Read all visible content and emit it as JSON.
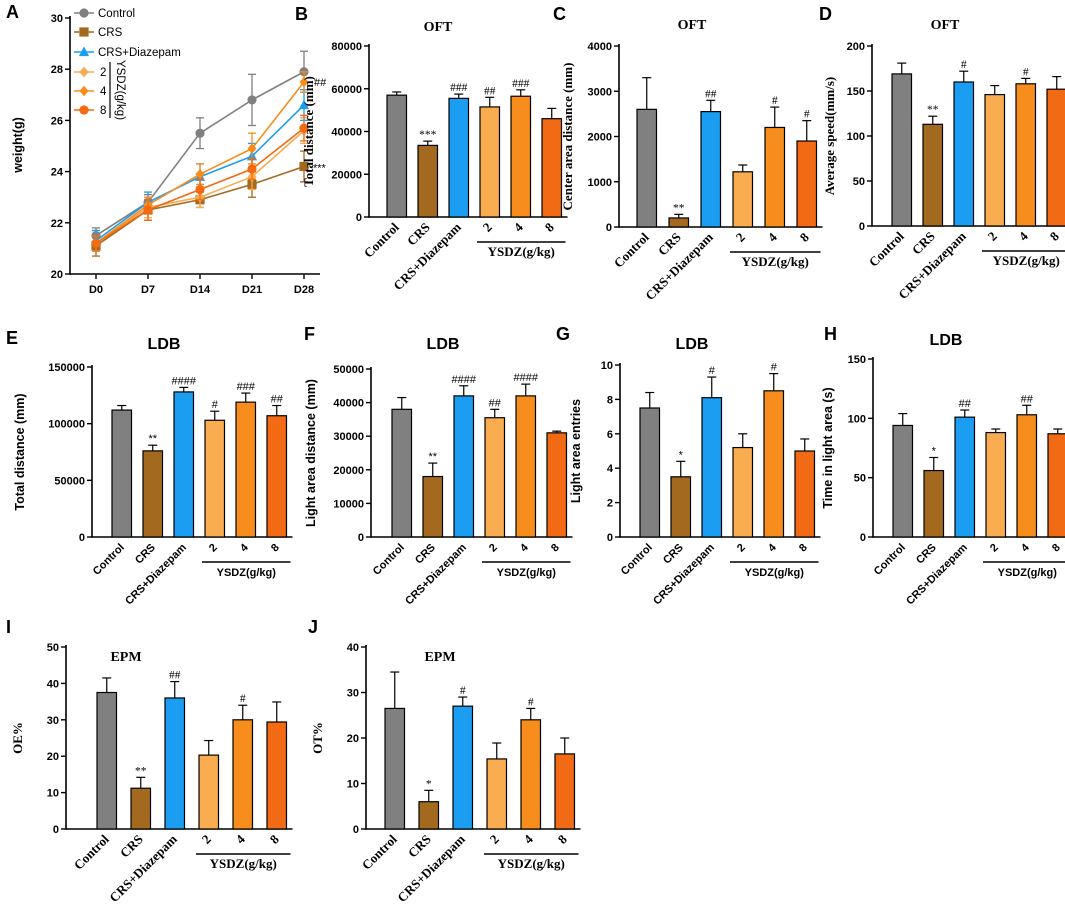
{
  "colors": {
    "control": "#808080",
    "crs": "#a36a1f",
    "diazepam": "#1b9ef2",
    "y2": "#f9ac50",
    "y4": "#f68d1c",
    "y8": "#f26a13",
    "axis": "#000000"
  },
  "chart_data": [
    {
      "panel": "A",
      "type": "line",
      "title": "",
      "ylabel": "weight(g)",
      "xlabel": "",
      "ylim": [
        20,
        30
      ],
      "yticks": [
        20,
        22,
        24,
        26,
        28,
        30
      ],
      "x": [
        "D0",
        "D7",
        "D14",
        "D21",
        "D28"
      ],
      "series": [
        {
          "name": "Control",
          "color": "control",
          "marker": "circle",
          "values": [
            21.5,
            22.8,
            25.5,
            26.8,
            27.9
          ],
          "err": [
            0.3,
            0.3,
            0.6,
            1.0,
            0.8
          ]
        },
        {
          "name": "CRS",
          "color": "crs",
          "marker": "square",
          "values": [
            21.1,
            22.5,
            22.9,
            23.5,
            24.2
          ],
          "err": [
            0.4,
            0.4,
            0.3,
            0.5,
            0.6
          ]
        },
        {
          "name": "CRS+Diazepam",
          "color": "diazepam",
          "marker": "triangle",
          "values": [
            21.3,
            22.8,
            23.8,
            24.6,
            26.6
          ],
          "err": [
            0.4,
            0.4,
            0.5,
            0.5,
            0.6
          ]
        },
        {
          "name": "2",
          "color": "y2",
          "marker": "diamond",
          "values": [
            21.2,
            22.6,
            23.0,
            23.8,
            25.6
          ],
          "err": [
            0.3,
            0.4,
            0.4,
            0.5,
            0.5
          ]
        },
        {
          "name": "4",
          "color": "y4",
          "marker": "diamond",
          "values": [
            21.2,
            22.7,
            23.9,
            24.9,
            27.5
          ],
          "err": [
            0.3,
            0.3,
            0.4,
            0.6,
            0.4
          ]
        },
        {
          "name": "8",
          "color": "y8",
          "marker": "circle",
          "values": [
            21.2,
            22.5,
            23.3,
            24.1,
            25.7
          ],
          "err": [
            0.3,
            0.4,
            0.4,
            0.4,
            0.5
          ]
        }
      ],
      "legend_group_label": "YSDZ(g/kg)",
      "annotations": [
        {
          "text": "##",
          "series": 4,
          "index": 4
        },
        {
          "text": "***",
          "series": 1,
          "index": 4
        }
      ]
    },
    {
      "panel": "B",
      "type": "bar",
      "title": "OFT",
      "title_font": "serif",
      "ylabel": "Total distance (mm)",
      "ylim": [
        0,
        80000
      ],
      "yticks": [
        0,
        20000,
        40000,
        60000,
        80000
      ],
      "ytick_labels": [
        "0",
        "20000",
        "40000",
        "60000",
        "80000"
      ],
      "categories": [
        "Control",
        "CRS",
        "CRS+Diazepam",
        "2",
        "4",
        "8"
      ],
      "group_label": "YSDZ(g/kg)",
      "values": [
        57000,
        33500,
        55500,
        51500,
        56500,
        46000
      ],
      "err": [
        1500,
        2000,
        2000,
        4500,
        3000,
        4800
      ],
      "marks": [
        "",
        "***",
        "###",
        "##",
        "###",
        ""
      ]
    },
    {
      "panel": "C",
      "type": "bar",
      "title": "OFT",
      "title_font": "serif",
      "ylabel": "Center area distance (mm)",
      "ylim": [
        0,
        4000
      ],
      "yticks": [
        0,
        1000,
        2000,
        3000,
        4000
      ],
      "ytick_labels": [
        "0",
        "1000",
        "2000",
        "3000",
        "4000"
      ],
      "categories": [
        "Control",
        "CRS",
        "CRS+Diazepam",
        "2",
        "4",
        "8"
      ],
      "group_label": "YSDZ(g/kg)",
      "values": [
        2600,
        200,
        2550,
        1220,
        2200,
        1900
      ],
      "err": [
        700,
        80,
        250,
        150,
        450,
        450
      ],
      "marks": [
        "",
        "**",
        "##",
        "",
        "#",
        "#"
      ]
    },
    {
      "panel": "D",
      "type": "bar",
      "title": "OFT",
      "title_font": "serif",
      "ylabel": "Average speed(mm/s)",
      "ylim": [
        0,
        200
      ],
      "yticks": [
        0,
        50,
        100,
        150,
        200
      ],
      "ytick_labels": [
        "0",
        "50",
        "100",
        "150",
        "200"
      ],
      "categories": [
        "Control",
        "CRS",
        "CRS+Diazepam",
        "2",
        "4",
        "8"
      ],
      "group_label": "YSDZ(g/kg)",
      "values": [
        169,
        113,
        160,
        146,
        158,
        152
      ],
      "err": [
        12,
        9,
        12,
        10,
        6,
        14
      ],
      "marks": [
        "",
        "**",
        "#",
        "",
        "#",
        ""
      ]
    },
    {
      "panel": "E",
      "type": "bar",
      "title": "LDB",
      "title_font": "sans",
      "ylabel": "Total distance (mm)",
      "ylim": [
        0,
        150000
      ],
      "yticks": [
        0,
        50000,
        100000,
        150000
      ],
      "ytick_labels": [
        "0",
        "50000",
        "100000",
        "150000"
      ],
      "categories": [
        "Control",
        "CRS",
        "CRS+Diazepam",
        "2",
        "4",
        "8"
      ],
      "group_label": "YSDZ(g/kg)",
      "values": [
        112000,
        76000,
        128000,
        103000,
        119000,
        107000
      ],
      "err": [
        4000,
        5000,
        4000,
        8000,
        8000,
        9000
      ],
      "marks": [
        "",
        "**",
        "####",
        "#",
        "###",
        "##"
      ]
    },
    {
      "panel": "F",
      "type": "bar",
      "title": "LDB",
      "title_font": "sans",
      "ylabel": "Light area distance (mm)",
      "ylim": [
        0,
        50000
      ],
      "yticks": [
        0,
        10000,
        20000,
        30000,
        40000,
        50000
      ],
      "ytick_labels": [
        "0",
        "10000",
        "20000",
        "30000",
        "40000",
        "50000"
      ],
      "categories": [
        "Control",
        "CRS",
        "CRS+Diazepam",
        "2",
        "4",
        "8"
      ],
      "group_label": "YSDZ(g/kg)",
      "values": [
        38000,
        18000,
        42000,
        35500,
        42000,
        31000
      ],
      "err": [
        3500,
        4000,
        3000,
        2500,
        3500,
        500
      ],
      "marks": [
        "",
        "**",
        "####",
        "##",
        "####",
        ""
      ]
    },
    {
      "panel": "G",
      "type": "bar",
      "title": "LDB",
      "title_font": "sans",
      "ylabel": "Light area entries",
      "ylim": [
        0,
        10
      ],
      "yticks": [
        0,
        2,
        4,
        6,
        8,
        10
      ],
      "ytick_labels": [
        "0",
        "2",
        "4",
        "6",
        "8",
        "10"
      ],
      "categories": [
        "Control",
        "CRS",
        "CRS+Diazepam",
        "2",
        "4",
        "8"
      ],
      "group_label": "YSDZ(g/kg)",
      "values": [
        7.5,
        3.5,
        8.1,
        5.2,
        8.5,
        5.0
      ],
      "err": [
        0.9,
        0.9,
        1.2,
        0.8,
        1.0,
        0.7
      ],
      "marks": [
        "",
        "*",
        "#",
        "",
        "#",
        ""
      ]
    },
    {
      "panel": "H",
      "type": "bar",
      "title": "LDB",
      "title_font": "sans",
      "ylabel": "Time in light area (s)",
      "ylim": [
        0,
        150
      ],
      "yticks": [
        0,
        50,
        100,
        150
      ],
      "ytick_labels": [
        "0",
        "50",
        "100",
        "150"
      ],
      "categories": [
        "Control",
        "CRS",
        "CRS+Diazepam",
        "2",
        "4",
        "8"
      ],
      "group_label": "YSDZ(g/kg)",
      "values": [
        94,
        56,
        101,
        88,
        103,
        87
      ],
      "err": [
        10,
        11,
        6,
        3,
        8,
        4
      ],
      "marks": [
        "",
        "*",
        "##",
        "",
        "##",
        ""
      ]
    },
    {
      "panel": "I",
      "type": "bar",
      "title": "EPM",
      "title_font": "serif",
      "ylabel": "OE%",
      "ylim": [
        0,
        50
      ],
      "yticks": [
        0,
        10,
        20,
        30,
        40,
        50
      ],
      "ytick_labels": [
        "0",
        "10",
        "20",
        "30",
        "40",
        "50"
      ],
      "categories": [
        "Control",
        "CRS",
        "CRS+Diazepam",
        "2",
        "4",
        "8"
      ],
      "group_label": "YSDZ(g/kg)",
      "values": [
        37.5,
        11.2,
        36,
        20.3,
        30,
        29.4
      ],
      "err": [
        4,
        3,
        4.5,
        4,
        4,
        5.5
      ],
      "marks": [
        "",
        "**",
        "##",
        "",
        "#",
        ""
      ]
    },
    {
      "panel": "J",
      "type": "bar",
      "title": "EPM",
      "title_font": "serif",
      "ylabel": "OT%",
      "ylim": [
        0,
        40
      ],
      "yticks": [
        0,
        10,
        20,
        30,
        40
      ],
      "ytick_labels": [
        "0",
        "10",
        "20",
        "30",
        "40"
      ],
      "categories": [
        "Control",
        "CRS",
        "CRS+Diazepam",
        "2",
        "4",
        "8"
      ],
      "group_label": "YSDZ(g/kg)",
      "values": [
        26.5,
        6,
        27,
        15.4,
        24,
        16.5
      ],
      "err": [
        8,
        2.5,
        2,
        3.5,
        2.5,
        3.5
      ],
      "marks": [
        "",
        "*",
        "#",
        "",
        "#",
        ""
      ]
    }
  ]
}
